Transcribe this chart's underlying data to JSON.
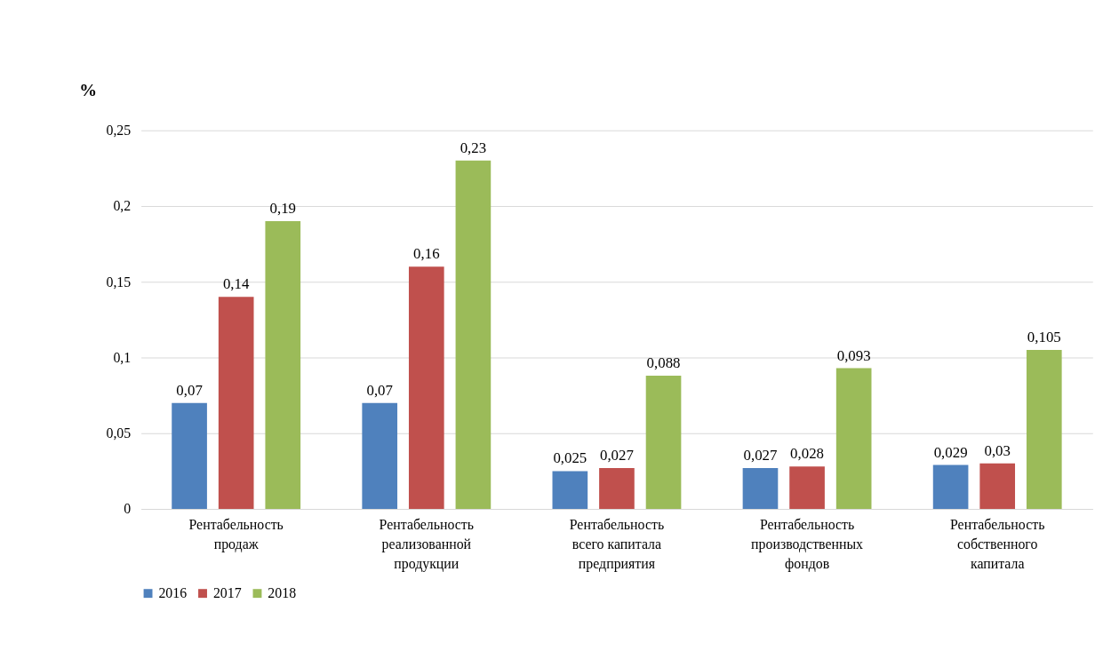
{
  "chart_data": {
    "type": "bar",
    "ylabel": "%",
    "categories": [
      "Рентабельность\nпродаж",
      "Рентабельность\nреализованной\nпродукции",
      "Рентабельность\nвсего капитала\nпредприятия",
      "Рентабельность\nпроизводственных\nфондов",
      "Рентабельность\nсобственного\nкапитала"
    ],
    "series": [
      {
        "name": "2016",
        "color": "#4f81bd",
        "values": [
          0.07,
          0.07,
          0.025,
          0.027,
          0.029
        ],
        "value_labels": [
          "0,07",
          "0,07",
          "0,025",
          "0,027",
          "0,029"
        ]
      },
      {
        "name": "2017",
        "color": "#c0504d",
        "values": [
          0.14,
          0.16,
          0.027,
          0.028,
          0.03
        ],
        "value_labels": [
          "0,14",
          "0,16",
          "0,027",
          "0,028",
          "0,03"
        ]
      },
      {
        "name": "2018",
        "color": "#9bbb59",
        "values": [
          0.19,
          0.23,
          0.088,
          0.093,
          0.105
        ],
        "value_labels": [
          "0,19",
          "0,23",
          "0,088",
          "0,093",
          "0,105"
        ]
      }
    ],
    "ylim": [
      0,
      0.25
    ],
    "yticks": [
      0,
      {
        "value": 0.05,
        "label": "0,05"
      },
      {
        "value": 0.1,
        "label": "0,1"
      },
      {
        "value": 0.15,
        "label": "0,15"
      },
      {
        "value": 0.2,
        "label": "0,2"
      },
      {
        "value": 0.25,
        "label": "0,25"
      }
    ],
    "grid": "y",
    "legend": "bottom"
  }
}
